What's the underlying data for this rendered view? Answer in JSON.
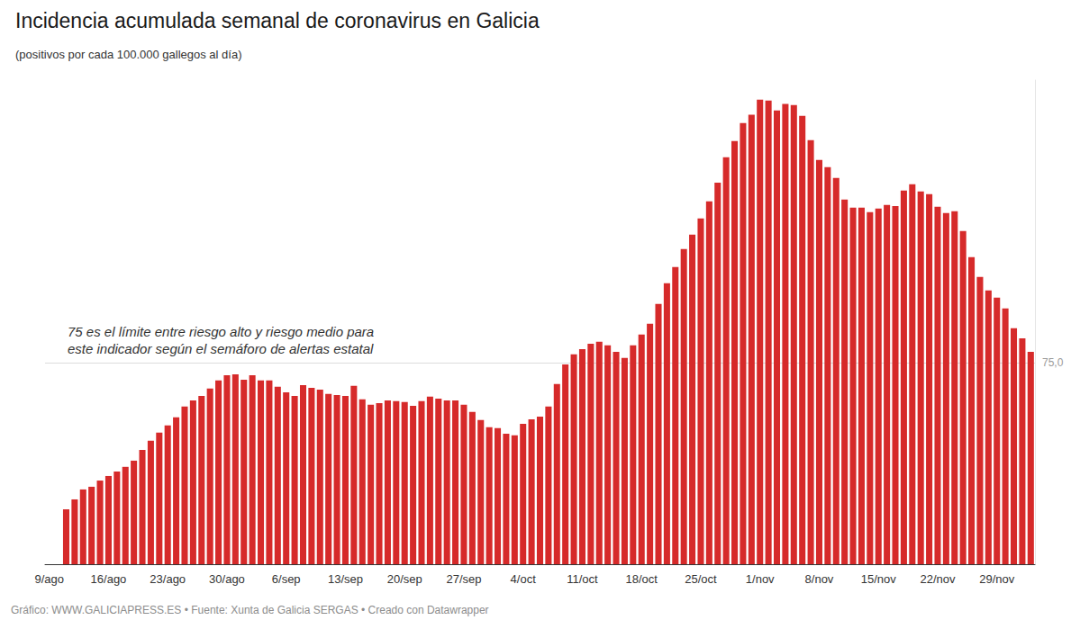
{
  "chart_data": {
    "type": "bar",
    "title": "Incidencia acumulada semanal de coronavirus en Galicia",
    "subtitle": "(positivos por cada 100.000 gallegos al día)",
    "annotation": [
      "75 es el límite entre riesgo alto y riesgo medio para",
      "este indicador según el semáforo de alertas estatal"
    ],
    "source": "Gráfico: WWW.GALICIAPRESS.ES • Fuente: Xunta de Galicia SERGAS • Creado con Datawrapper",
    "categories": [
      "9/ago",
      null,
      null,
      null,
      null,
      null,
      null,
      "16/ago",
      null,
      null,
      null,
      null,
      null,
      null,
      "23/ago",
      null,
      null,
      null,
      null,
      null,
      null,
      "30/ago",
      null,
      null,
      null,
      null,
      null,
      null,
      "6/sep",
      null,
      null,
      null,
      null,
      null,
      null,
      "13/sep",
      null,
      null,
      null,
      null,
      null,
      null,
      "20/sep",
      null,
      null,
      null,
      null,
      null,
      null,
      "27/sep",
      null,
      null,
      null,
      null,
      null,
      null,
      "4/oct",
      null,
      null,
      null,
      null,
      null,
      null,
      "11/oct",
      null,
      null,
      null,
      null,
      null,
      null,
      "18/oct",
      null,
      null,
      null,
      null,
      null,
      null,
      "25/oct",
      null,
      null,
      null,
      null,
      null,
      null,
      "1/nov",
      null,
      null,
      null,
      null,
      null,
      null,
      "8/nov",
      null,
      null,
      null,
      null,
      null,
      null,
      "15/nov",
      null,
      null,
      null,
      null,
      null,
      null,
      "22/nov",
      null,
      null,
      null,
      null,
      null,
      null,
      "29/nov",
      null,
      null,
      null,
      null
    ],
    "values": [
      null,
      null,
      20.4,
      24.1,
      27.8,
      28.8,
      31.1,
      32.8,
      34.5,
      36.2,
      38.5,
      42.5,
      45.9,
      48.9,
      51.6,
      54.6,
      58.6,
      60.9,
      62.6,
      65.3,
      68.3,
      70.3,
      70.6,
      68.6,
      70.3,
      68.3,
      68.3,
      66.0,
      63.9,
      62.6,
      66.6,
      65.6,
      64.9,
      63.3,
      62.9,
      62.6,
      66.3,
      61.3,
      59.3,
      59.9,
      60.9,
      60.6,
      60.3,
      58.9,
      60.6,
      62.3,
      61.6,
      60.9,
      60.9,
      59.3,
      56.6,
      53.6,
      50.9,
      50.6,
      48.5,
      47.9,
      52.2,
      53.9,
      54.9,
      58.6,
      67.0,
      74.3,
      78.0,
      80.0,
      82.0,
      82.7,
      81.4,
      79.0,
      76.7,
      81.4,
      85.4,
      89.4,
      96.8,
      104.5,
      110.5,
      117.2,
      122.5,
      128.6,
      134.9,
      141.9,
      151.3,
      157.3,
      164.0,
      167.1,
      172.7,
      172.4,
      168.7,
      171.1,
      170.7,
      166.7,
      157.7,
      150.3,
      147.6,
      143.6,
      135.6,
      132.6,
      132.6,
      130.9,
      132.2,
      133.6,
      133.2,
      138.9,
      141.3,
      138.6,
      137.6,
      132.9,
      130.6,
      131.2,
      123.9,
      114.2,
      106.8,
      101.8,
      99.1,
      95.1,
      87.7,
      84.0,
      79.0
    ],
    "color": "#d62a2a",
    "ylim": [
      0,
      180
    ],
    "yticks": [
      {
        "value": 75,
        "label": "75,0"
      }
    ],
    "grid": true
  }
}
